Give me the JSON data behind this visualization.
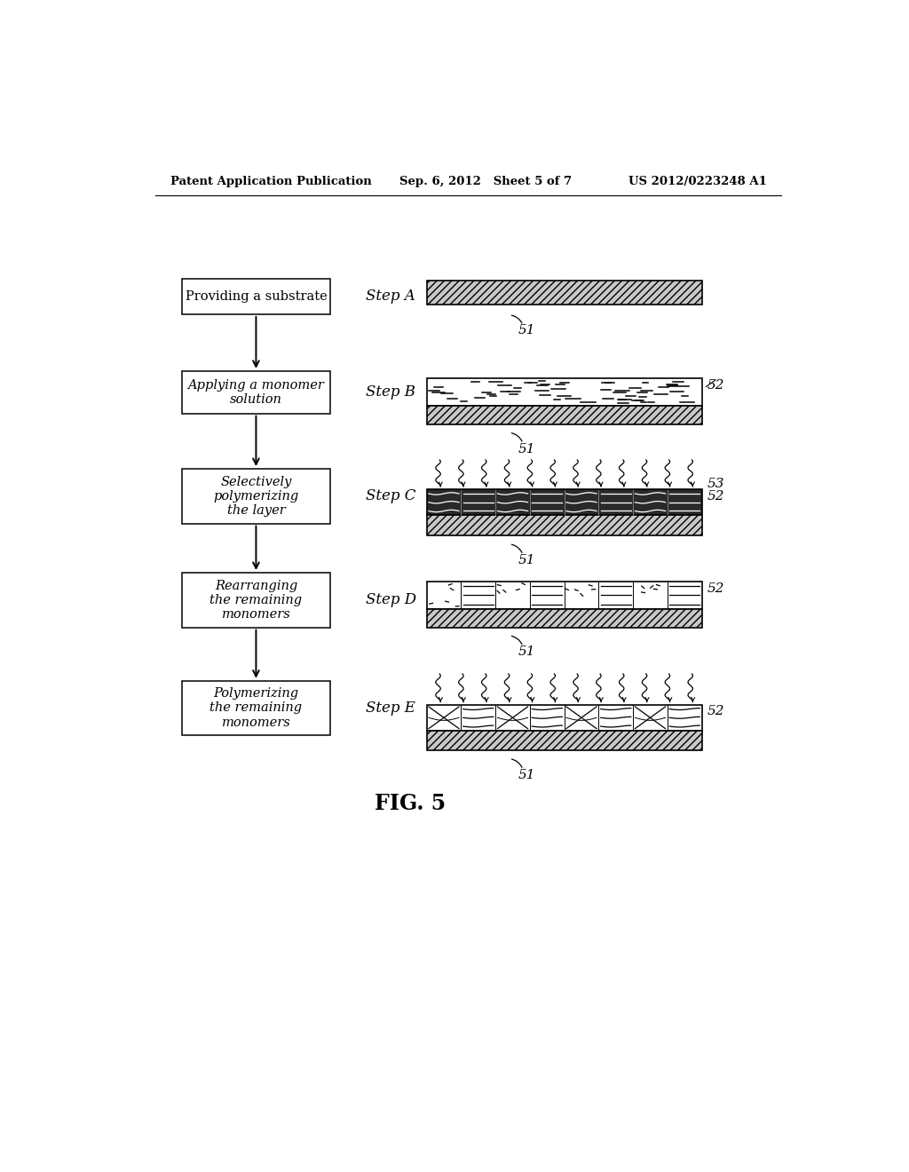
{
  "header_left": "Patent Application Publication",
  "header_center": "Sep. 6, 2012   Sheet 5 of 7",
  "header_right": "US 2012/0223248 A1",
  "fig_label": "FIG. 5",
  "steps": [
    {
      "box_text": "Providing a substrate",
      "step_label": "Step A",
      "italic": false
    },
    {
      "box_text": "Applying a monomer\nsolution",
      "step_label": "Step B",
      "italic": true
    },
    {
      "box_text": "Selectively\npolymerizing\nthe layer",
      "step_label": "Step C",
      "italic": true
    },
    {
      "box_text": "Rearranging\nthe remaining\nmonomers",
      "step_label": "Step D",
      "italic": true
    },
    {
      "box_text": "Polymerizing\nthe remaining\nmonomers",
      "step_label": "Step E",
      "italic": true
    }
  ],
  "label_51": "51",
  "label_52": "52",
  "label_53": "53",
  "bg_color": "#ffffff",
  "box_color": "#ffffff",
  "box_edge_color": "#000000"
}
